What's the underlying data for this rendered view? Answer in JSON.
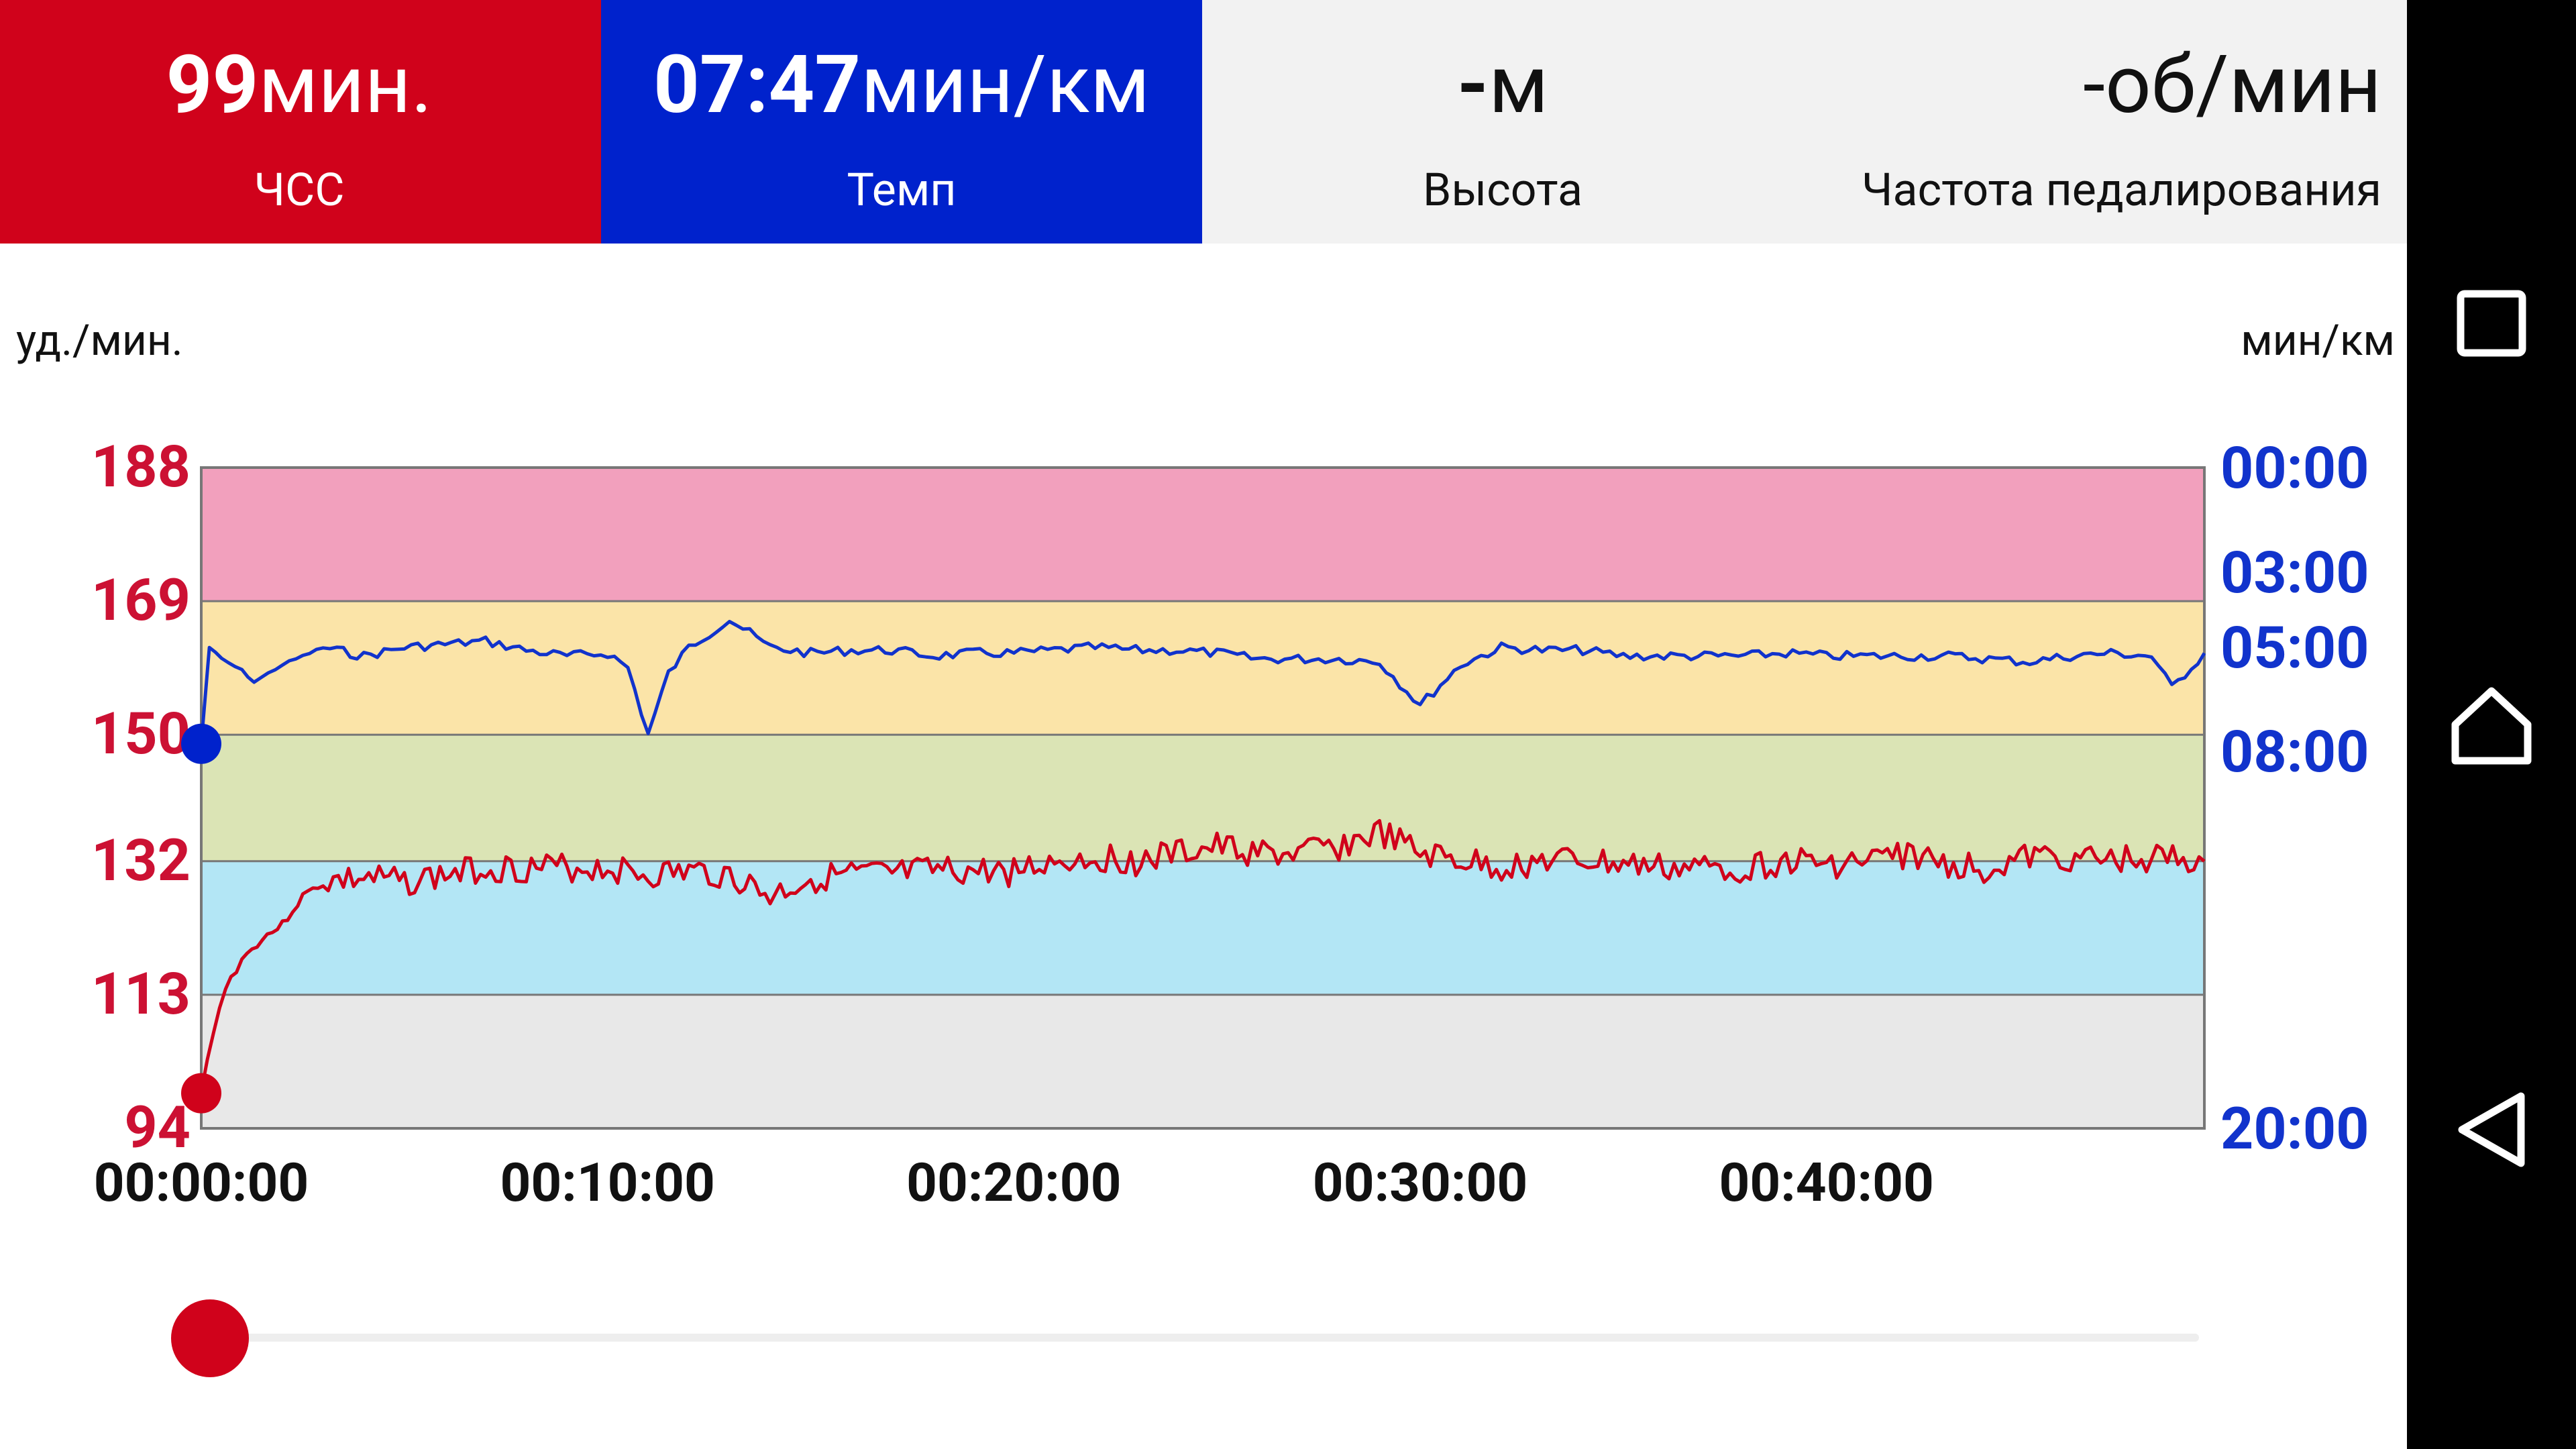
{
  "tiles": {
    "hr": {
      "value": "99",
      "unit": "мин.",
      "label": "ЧСС",
      "color": "#d0021b"
    },
    "pace": {
      "value": "07:47",
      "unit": "мин/км",
      "label": "Темп",
      "color": "#0022cc"
    },
    "altitude": {
      "value": "-",
      "unit": "м",
      "label": "Высота"
    },
    "cadence": {
      "value": "-",
      "unit": "об/мин",
      "label": "Частота педалирования"
    }
  },
  "axis_units": {
    "left": "уд./мин.",
    "right": "мин/км"
  },
  "chart_data": {
    "type": "line",
    "x_ticks": [
      "00:00:00",
      "00:10:00",
      "00:20:00",
      "00:30:00",
      "00:40:00"
    ],
    "x_range_minutes": [
      0,
      49.3
    ],
    "left_axis": {
      "ticks": [
        "188",
        "169",
        "150",
        "132",
        "113",
        "94"
      ],
      "range": [
        94,
        188
      ],
      "color": "#cc1133"
    },
    "right_axis": {
      "ticks": [
        "00:00",
        "03:00",
        "05:00",
        "08:00",
        "20:00"
      ],
      "color": "#1133cc"
    },
    "hr_zones": [
      {
        "from": 94,
        "to": 113,
        "color": "#e8e8e8"
      },
      {
        "from": 113,
        "to": 132,
        "color": "#b3e6f5"
      },
      {
        "from": 132,
        "to": 150,
        "color": "#dbe4b5"
      },
      {
        "from": 150,
        "to": 169,
        "color": "#fbe4a8"
      },
      {
        "from": 169,
        "to": 188,
        "color": "#f2a0bd"
      }
    ],
    "series": [
      {
        "name": "ЧСС",
        "color": "#d0021b",
        "points_minutes_bpm": [
          [
            0,
            99
          ],
          [
            0.3,
            108
          ],
          [
            0.6,
            114
          ],
          [
            1.0,
            118
          ],
          [
            1.5,
            121
          ],
          [
            2.0,
            123
          ],
          [
            2.5,
            127
          ],
          [
            3.0,
            129
          ],
          [
            4,
            129.5
          ],
          [
            5,
            129
          ],
          [
            6,
            130
          ],
          [
            7,
            131
          ],
          [
            8,
            131
          ],
          [
            9,
            131
          ],
          [
            10,
            131
          ],
          [
            11,
            130
          ],
          [
            12,
            130.5
          ],
          [
            13,
            130
          ],
          [
            14,
            127
          ],
          [
            15,
            129.5
          ],
          [
            16,
            130
          ],
          [
            17,
            130
          ],
          [
            18,
            130.5
          ],
          [
            19,
            130.5
          ],
          [
            20,
            130.5
          ],
          [
            21,
            132
          ],
          [
            22,
            132.5
          ],
          [
            23,
            132
          ],
          [
            24,
            133
          ],
          [
            25,
            134
          ],
          [
            26,
            133
          ],
          [
            27,
            133
          ],
          [
            28,
            134
          ],
          [
            29,
            136
          ],
          [
            30,
            133
          ],
          [
            31,
            132
          ],
          [
            32,
            131
          ],
          [
            33,
            132
          ],
          [
            34,
            132
          ],
          [
            35,
            131.5
          ],
          [
            36,
            131
          ],
          [
            37,
            131
          ],
          [
            38,
            131
          ],
          [
            39,
            132
          ],
          [
            40,
            131.5
          ],
          [
            41,
            132
          ],
          [
            42,
            133
          ],
          [
            43,
            131.5
          ],
          [
            44,
            131
          ],
          [
            45,
            132.5
          ],
          [
            46,
            132.5
          ],
          [
            47,
            132
          ],
          [
            48,
            132.5
          ],
          [
            49.3,
            132
          ]
        ]
      },
      {
        "name": "Темп",
        "color": "#1133cc",
        "points_minutes_pace": [
          [
            0,
            "07:47"
          ],
          [
            0.2,
            "05:00"
          ],
          [
            0.5,
            "05:20"
          ],
          [
            1.0,
            "05:40"
          ],
          [
            1.3,
            "06:00"
          ],
          [
            2,
            "05:30"
          ],
          [
            3,
            "05:00"
          ],
          [
            4,
            "05:15"
          ],
          [
            5,
            "05:00"
          ],
          [
            6,
            "04:55"
          ],
          [
            7,
            "04:50"
          ],
          [
            8,
            "05:05"
          ],
          [
            9,
            "05:15"
          ],
          [
            10,
            "05:10"
          ],
          [
            10.5,
            "05:35"
          ],
          [
            11,
            "07:30"
          ],
          [
            11.5,
            "05:45"
          ],
          [
            12,
            "05:00"
          ],
          [
            13,
            "04:15"
          ],
          [
            14,
            "05:00"
          ],
          [
            15,
            "05:10"
          ],
          [
            16,
            "05:05"
          ],
          [
            17,
            "05:05"
          ],
          [
            18,
            "05:15"
          ],
          [
            19,
            "05:10"
          ],
          [
            20,
            "05:10"
          ],
          [
            21,
            "05:05"
          ],
          [
            22,
            "05:00"
          ],
          [
            23,
            "05:05"
          ],
          [
            24,
            "05:05"
          ],
          [
            25,
            "05:10"
          ],
          [
            26,
            "05:20"
          ],
          [
            27,
            "05:20"
          ],
          [
            28,
            "05:20"
          ],
          [
            29,
            "05:25"
          ],
          [
            30,
            "06:40"
          ],
          [
            31,
            "05:30"
          ],
          [
            32,
            "05:00"
          ],
          [
            33,
            "05:05"
          ],
          [
            34,
            "05:05"
          ],
          [
            35,
            "05:15"
          ],
          [
            36,
            "05:15"
          ],
          [
            37,
            "05:15"
          ],
          [
            38,
            "05:15"
          ],
          [
            39,
            "05:10"
          ],
          [
            40,
            "05:15"
          ],
          [
            41,
            "05:15"
          ],
          [
            42,
            "05:15"
          ],
          [
            43,
            "05:15"
          ],
          [
            44,
            "05:20"
          ],
          [
            45,
            "05:25"
          ],
          [
            46,
            "05:15"
          ],
          [
            47,
            "05:10"
          ],
          [
            48,
            "05:15"
          ],
          [
            48.5,
            "06:10"
          ],
          [
            49.3,
            "05:10"
          ]
        ]
      }
    ],
    "grid": false,
    "legend": "none"
  },
  "slider": {
    "position": 0
  }
}
